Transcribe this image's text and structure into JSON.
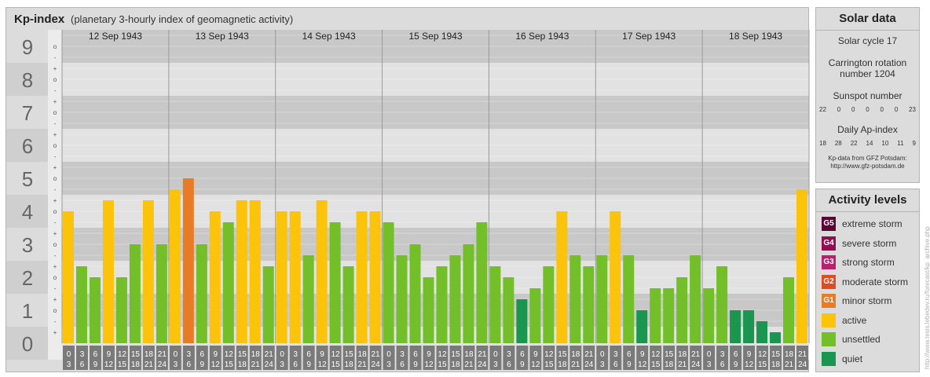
{
  "header": {
    "title": "Kp-index",
    "subtitle": "(planetary 3-hourly index of geomagnetic activity)"
  },
  "chart_data": {
    "type": "bar",
    "days": [
      "12 Sep 1943",
      "13 Sep 1943",
      "14 Sep 1943",
      "15 Sep 1943",
      "16 Sep 1943",
      "17 Sep 1943",
      "18 Sep 1943"
    ],
    "y_ticks": [
      "0",
      "1",
      "2",
      "3",
      "4",
      "5",
      "6",
      "7",
      "8",
      "9"
    ],
    "ylim": [
      0,
      9
    ],
    "sublevel_marks": [
      "o",
      "+",
      "-"
    ],
    "interval_start_labels": [
      "0",
      "3",
      "6",
      "9",
      "12",
      "15",
      "18",
      "21"
    ],
    "interval_end_labels": [
      "3",
      "6",
      "9",
      "12",
      "15",
      "18",
      "21",
      "24"
    ],
    "values": [
      4.0,
      2.333,
      2.0,
      4.333,
      2.0,
      3.0,
      4.333,
      3.0,
      4.667,
      5.0,
      3.0,
      4.0,
      3.667,
      4.333,
      4.333,
      2.333,
      4.0,
      4.0,
      2.667,
      4.333,
      3.667,
      2.333,
      4.0,
      4.0,
      3.667,
      2.667,
      3.0,
      2.0,
      2.333,
      2.667,
      3.0,
      3.667,
      2.333,
      2.0,
      1.333,
      1.667,
      2.333,
      4.0,
      2.667,
      2.333,
      2.667,
      4.0,
      2.667,
      1.0,
      1.667,
      1.667,
      2.0,
      2.667,
      1.667,
      2.333,
      1.0,
      1.0,
      0.667,
      0.333,
      2.0,
      4.667
    ],
    "colors": {
      "quiet": "#1a9650",
      "unsettled": "#72bf2a",
      "active": "#fbc40a",
      "G1": "#e87b25",
      "G2": "#dc4d25",
      "G3": "#b5236f",
      "G4": "#8e1050",
      "G5": "#5a0535",
      "band_dark": "#c8c8c8",
      "band_light": "#e2e2e2",
      "left_dark": "#cfcfcf",
      "left_light": "#dcdcdc",
      "time_box": "#7a7a7a"
    }
  },
  "solar": {
    "title": "Solar data",
    "solar_cycle": "Solar cycle 17",
    "carrington_line1": "Carrington rotation",
    "carrington_line2": "number 1204",
    "sunspot_label": "Sunspot number",
    "sunspot_values": [
      "22",
      "0",
      "0",
      "0",
      "0",
      "0",
      "23"
    ],
    "ap_label": "Daily Ap-index",
    "ap_values": [
      "18",
      "28",
      "22",
      "14",
      "10",
      "11",
      "9"
    ],
    "credit_line1": "Kp-data from GFZ Potsdam:",
    "credit_line2": "http://www.gfz-potsdam.de"
  },
  "activity": {
    "title": "Activity levels",
    "levels": [
      {
        "badge": "G5",
        "label": "extreme storm",
        "color": "#5a0535"
      },
      {
        "badge": "G4",
        "label": "severe storm",
        "color": "#8e1050"
      },
      {
        "badge": "G3",
        "label": "strong storm",
        "color": "#b5236f"
      },
      {
        "badge": "G2",
        "label": "moderate storm",
        "color": "#dc4d25"
      },
      {
        "badge": "G1",
        "label": "minor storm",
        "color": "#e87b25"
      },
      {
        "badge": "",
        "label": "active",
        "color": "#fbc40a"
      },
      {
        "badge": "",
        "label": "unsettled",
        "color": "#72bf2a"
      },
      {
        "badge": "",
        "label": "quiet",
        "color": "#1a9650"
      }
    ]
  },
  "watermark": "http://www.tesis.lebedev.ru/forecast/kp_archive.php"
}
